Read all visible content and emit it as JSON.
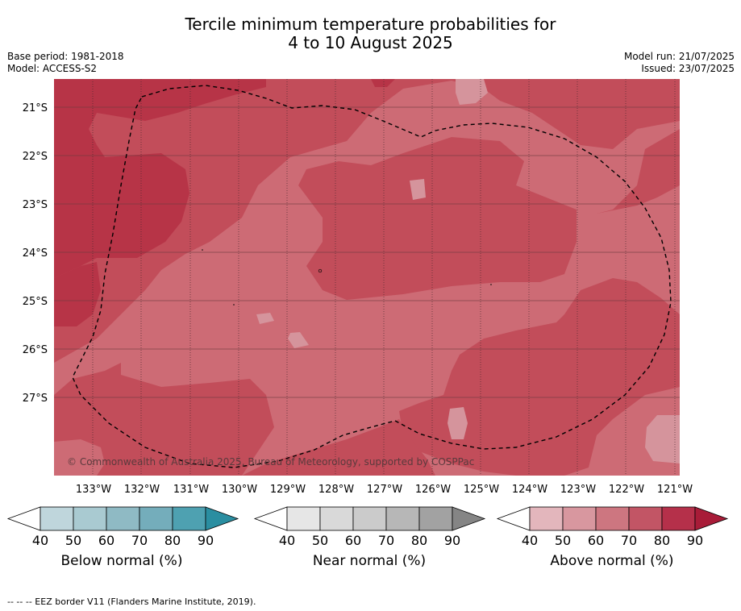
{
  "title": {
    "line1": "Tercile minimum temperature probabilities for",
    "line2": "4 to 10 August 2025"
  },
  "meta": {
    "base_period": "Base period: 1981-2018",
    "model": "Model: ACCESS-S2",
    "model_run": "Model run: 21/07/2025",
    "issued": "Issued: 23/07/2025"
  },
  "map": {
    "lat_labels": [
      "21°S",
      "22°S",
      "23°S",
      "24°S",
      "25°S",
      "26°S",
      "27°S"
    ],
    "lon_labels": [
      "133°W",
      "132°W",
      "131°W",
      "130°W",
      "129°W",
      "128°W",
      "127°W",
      "126°W",
      "125°W",
      "124°W",
      "123°W",
      "122°W",
      "121°W"
    ],
    "copyright": "© Commonwealth of Australia 2025, Bureau of Meteorology, supported by COSPPac",
    "colors": {
      "above_50": "#cd6b75",
      "above_60": "#c24d5a",
      "above_70": "#bb3a4b",
      "above_40": "#d5949c"
    }
  },
  "colorbars": [
    {
      "title": "Below normal (%)",
      "ticks": [
        "40",
        "50",
        "60",
        "70",
        "80",
        "90"
      ],
      "colors": [
        "#ffffff",
        "#bfd6dc",
        "#a9cad1",
        "#8fbac4",
        "#74adbb",
        "#4ea1b1",
        "#2a8ea1"
      ]
    },
    {
      "title": "Near normal (%)",
      "ticks": [
        "40",
        "50",
        "60",
        "70",
        "80",
        "90"
      ],
      "colors": [
        "#ffffff",
        "#e6e6e6",
        "#d9d9d9",
        "#cbcbcb",
        "#b7b7b7",
        "#a2a2a2",
        "#858585"
      ]
    },
    {
      "title": "Above normal (%)",
      "ticks": [
        "40",
        "50",
        "60",
        "70",
        "80",
        "90"
      ],
      "colors": [
        "#ffffff",
        "#e3b6bc",
        "#d8979f",
        "#cd7680",
        "#c25565",
        "#b5304a",
        "#a81c38"
      ]
    }
  ],
  "footnote": "--  --  -- EEZ border V11 (Flanders Marine Institute, 2019)."
}
